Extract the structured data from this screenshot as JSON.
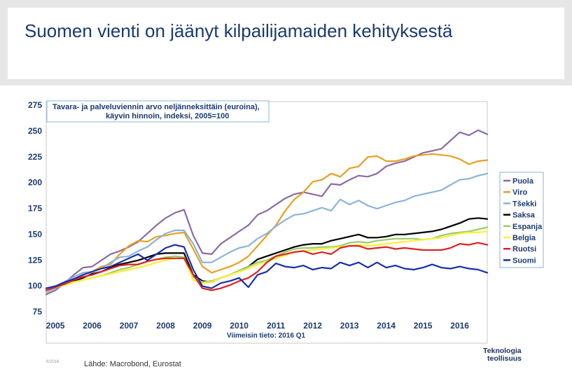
{
  "slide": {
    "title": "Suomen vienti on jäänyt kilpailijamaiden kehityksestä",
    "footer_date": "6/2016",
    "source": "Lähde: Macrobond, Eurostat",
    "logo_line1": "Teknologia",
    "logo_line2": "teollisuus"
  },
  "chart_data": {
    "type": "line",
    "title": "Tavara- ja palveluviennin arvo neljänneksittäin (euroina),",
    "subtitle": "käyvin hinnoin, indeksi, 2005=100",
    "x_note": "Viimeisin tieto: 2016 Q1",
    "ylim": [
      75,
      275
    ],
    "yticks": [
      75,
      100,
      125,
      150,
      175,
      200,
      225,
      250,
      275
    ],
    "xlim": [
      2004.75,
      2016.5
    ],
    "xticks": [
      "2005",
      "2006",
      "2007",
      "2008",
      "2009",
      "2010",
      "2011",
      "2012",
      "2013",
      "2014",
      "2015",
      "2016"
    ],
    "x_start": 2004.75,
    "x_step": 0.25,
    "grid": false,
    "legend_position": "right",
    "series": [
      {
        "name": "Puola",
        "color": "#8b6ba3",
        "values": [
          91,
          95,
          102,
          110,
          117,
          118,
          124,
          130,
          133,
          137,
          142,
          150,
          158,
          165,
          170,
          173,
          148,
          131,
          130,
          140,
          146,
          152,
          158,
          168,
          172,
          178,
          184,
          188,
          190,
          188,
          186,
          198,
          197,
          202,
          206,
          205,
          208,
          215,
          218,
          220,
          224,
          228,
          230,
          232,
          240,
          248,
          245,
          250,
          246
        ]
      },
      {
        "name": "Viro",
        "color": "#e8a020",
        "values": [
          93,
          97,
          101,
          105,
          110,
          113,
          118,
          120,
          130,
          138,
          143,
          142,
          147,
          148,
          150,
          151,
          135,
          118,
          112,
          115,
          118,
          122,
          128,
          138,
          148,
          158,
          172,
          183,
          190,
          200,
          202,
          208,
          205,
          213,
          215,
          224,
          225,
          220,
          220,
          222,
          225,
          226,
          227,
          226,
          225,
          222,
          217,
          220,
          221
        ]
      },
      {
        "name": "Tšekki",
        "color": "#8ab4d8",
        "values": [
          93,
          97,
          103,
          108,
          112,
          113,
          116,
          122,
          127,
          128,
          133,
          137,
          144,
          150,
          153,
          153,
          140,
          122,
          122,
          127,
          132,
          136,
          138,
          145,
          150,
          157,
          163,
          168,
          169,
          172,
          175,
          172,
          183,
          178,
          182,
          177,
          174,
          177,
          180,
          182,
          186,
          188,
          190,
          192,
          197,
          202,
          203,
          206,
          208
        ]
      },
      {
        "name": "Saksa",
        "color": "#000000",
        "values": [
          96,
          99,
          101,
          104,
          107,
          111,
          113,
          117,
          120,
          122,
          124,
          127,
          130,
          131,
          131,
          131,
          110,
          104,
          103,
          107,
          110,
          114,
          118,
          125,
          128,
          131,
          134,
          137,
          139,
          140,
          140,
          143,
          145,
          147,
          149,
          146,
          146,
          147,
          149,
          149,
          150,
          151,
          152,
          154,
          157,
          160,
          164,
          165,
          164
        ]
      },
      {
        "name": "Espanja",
        "color": "#99cc66",
        "values": [
          96,
          99,
          100,
          103,
          105,
          107,
          109,
          112,
          115,
          117,
          120,
          123,
          125,
          127,
          128,
          127,
          108,
          103,
          104,
          107,
          110,
          114,
          118,
          122,
          124,
          128,
          132,
          135,
          136,
          136,
          137,
          137,
          138,
          141,
          142,
          141,
          143,
          144,
          145,
          145,
          145,
          144,
          145,
          148,
          150,
          151,
          152,
          154,
          156
        ]
      },
      {
        "name": "Belgia",
        "color": "#ffee33",
        "values": [
          95,
          98,
          100,
          103,
          105,
          107,
          109,
          111,
          113,
          115,
          117,
          119,
          122,
          124,
          126,
          126,
          105,
          102,
          103,
          107,
          110,
          113,
          116,
          120,
          123,
          126,
          129,
          132,
          133,
          134,
          135,
          136,
          137,
          138,
          139,
          138,
          139,
          140,
          141,
          142,
          143,
          144,
          145,
          146,
          148,
          150,
          151,
          151,
          152
        ]
      },
      {
        "name": "Ruotsi",
        "color": "#dd2222",
        "values": [
          95,
          98,
          101,
          105,
          108,
          110,
          113,
          116,
          119,
          120,
          120,
          123,
          125,
          126,
          126,
          126,
          110,
          97,
          95,
          97,
          100,
          104,
          107,
          113,
          122,
          128,
          130,
          132,
          133,
          130,
          132,
          130,
          136,
          138,
          138,
          135,
          136,
          137,
          135,
          136,
          135,
          134,
          134,
          134,
          136,
          140,
          139,
          141,
          139
        ]
      },
      {
        "name": "Suomi",
        "color": "#1a2eaa",
        "values": [
          97,
          99,
          103,
          106,
          110,
          113,
          116,
          118,
          122,
          126,
          130,
          124,
          130,
          136,
          139,
          137,
          115,
          99,
          97,
          102,
          104,
          107,
          98,
          110,
          113,
          121,
          118,
          117,
          119,
          115,
          117,
          116,
          122,
          119,
          122,
          117,
          122,
          117,
          119,
          116,
          115,
          117,
          120,
          117,
          116,
          118,
          116,
          115,
          112
        ]
      }
    ]
  }
}
